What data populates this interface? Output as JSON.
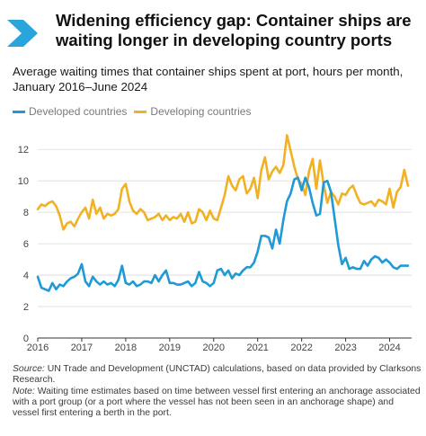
{
  "title": "Widening efficiency gap: Container ships are waiting longer in developing country ports",
  "subtitle": "Average waiting times that container ships spent at port, hours per month, January 2016–June 2024",
  "colors": {
    "chevron": "#2aa5dc",
    "developed": "#1f9ad6",
    "developing": "#f2b123",
    "grid": "#d9d9d9",
    "axis": "#333333"
  },
  "notes": {
    "source_label": "Source:",
    "source_text": "UN Trade and Development (UNCTAD) calculations, based on data provided by Clarksons Research.",
    "note_label": "Note:",
    "note_text": "Waiting time estimates based on time between vessel first entering an anchorage associated with a port group (or a port where the vessel has not been seen in an anchorage shape) and vessel first entering a berth in the port."
  },
  "chart_data": {
    "type": "line",
    "title": "",
    "xlabel": "",
    "ylabel": "",
    "ylim": [
      0,
      13.5
    ],
    "yticks": [
      0,
      2,
      4,
      6,
      8,
      10,
      12
    ],
    "xlim": [
      2016,
      2024.5
    ],
    "xticks": [
      "2016",
      "2017",
      "2018",
      "2019",
      "2020",
      "2021",
      "2022",
      "2023",
      "2024"
    ],
    "legend_position": "top-left",
    "grid": true,
    "x_start": "2016-01",
    "x_end": "2024-06",
    "series": [
      {
        "name": "Developed countries",
        "color": "#1f9ad6",
        "values": [
          3.9,
          3.2,
          3.1,
          3.0,
          3.5,
          3.1,
          3.4,
          3.3,
          3.6,
          3.8,
          3.9,
          4.1,
          4.7,
          3.6,
          3.3,
          3.9,
          3.6,
          3.4,
          3.6,
          3.4,
          3.5,
          3.3,
          3.7,
          4.6,
          3.5,
          3.4,
          3.6,
          3.3,
          3.4,
          3.6,
          3.6,
          3.5,
          4.0,
          3.6,
          4.0,
          4.3,
          3.5,
          3.5,
          3.4,
          3.4,
          3.5,
          3.6,
          3.3,
          3.5,
          4.2,
          3.6,
          3.5,
          3.3,
          3.5,
          4.3,
          4.4,
          4.0,
          4.3,
          3.8,
          4.1,
          4.0,
          4.3,
          4.5,
          4.5,
          4.8,
          5.5,
          6.5,
          6.5,
          6.4,
          5.7,
          6.9,
          6.0,
          7.5,
          8.7,
          9.2,
          10.1,
          10.2,
          9.4,
          10.2,
          9.6,
          8.6,
          7.8,
          7.9,
          9.9,
          10.0,
          9.3,
          7.6,
          5.9,
          4.7,
          5.1,
          4.4,
          4.5,
          4.4,
          4.4,
          4.9,
          4.6,
          5.0,
          5.2,
          5.1,
          4.8,
          5.0,
          4.8,
          4.5,
          4.4,
          4.6,
          4.6,
          4.6
        ]
      },
      {
        "name": "Developing countries",
        "color": "#f2b123",
        "values": [
          8.2,
          8.5,
          8.4,
          8.6,
          8.7,
          8.4,
          7.8,
          6.9,
          7.3,
          7.4,
          7.1,
          7.6,
          8.0,
          8.3,
          7.6,
          8.8,
          7.9,
          8.3,
          7.6,
          7.9,
          7.8,
          7.9,
          8.2,
          9.5,
          9.8,
          8.7,
          8.1,
          7.9,
          8.2,
          8.0,
          7.5,
          7.6,
          7.7,
          7.9,
          7.5,
          7.8,
          7.5,
          7.7,
          7.6,
          7.9,
          7.4,
          8.0,
          7.3,
          7.4,
          8.2,
          8.0,
          7.5,
          8.1,
          7.6,
          7.5,
          8.3,
          9.1,
          10.3,
          9.7,
          9.4,
          10.1,
          10.3,
          9.2,
          9.5,
          10.2,
          8.9,
          10.7,
          11.5,
          10.1,
          10.6,
          10.9,
          10.5,
          11.0,
          12.9,
          11.9,
          10.9,
          10.1,
          9.8,
          9.1,
          10.6,
          11.4,
          9.5,
          11.3,
          9.8,
          8.6,
          9.3,
          9.0,
          8.5,
          9.2,
          9.1,
          9.5,
          9.7,
          9.1,
          8.6,
          8.5,
          8.6,
          8.7,
          8.4,
          8.8,
          8.7,
          8.5,
          9.5,
          8.3,
          9.3,
          9.6,
          10.7,
          9.7
        ]
      }
    ]
  }
}
